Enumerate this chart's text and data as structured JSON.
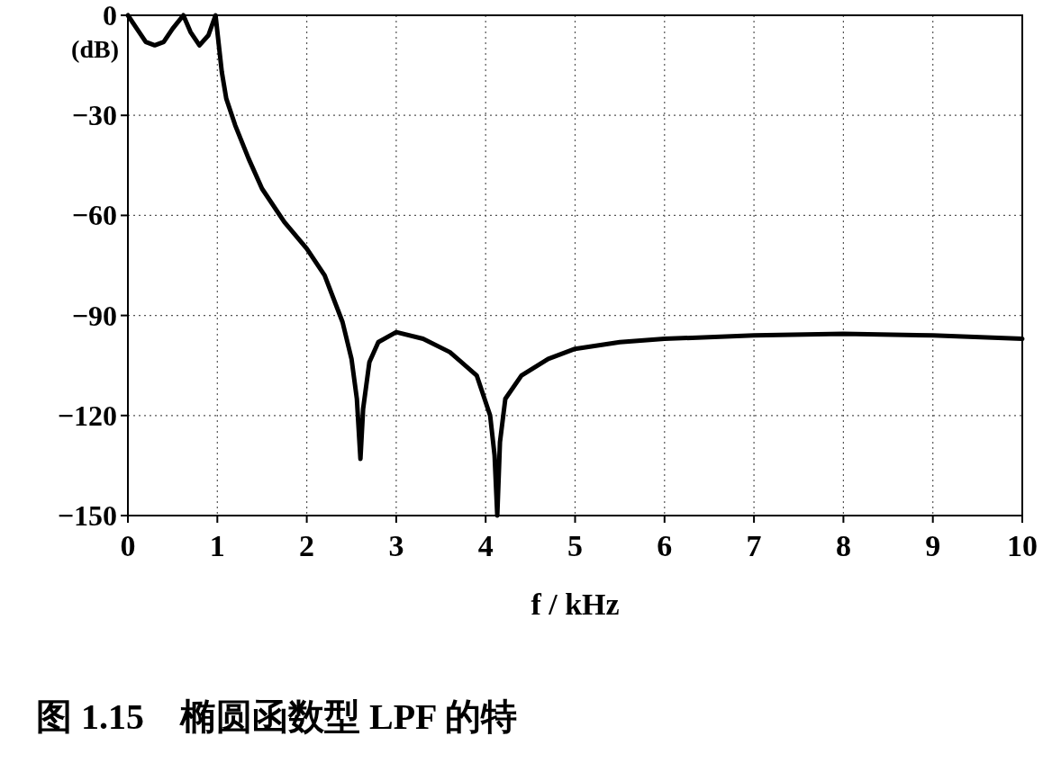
{
  "chart_data": {
    "type": "line",
    "xlabel": "f / kHz",
    "ylabel": "(dB)",
    "annotations": [
      "图 1.15　椭圆函数型 LPF 的特"
    ],
    "x": [
      0,
      0.1,
      0.2,
      0.3,
      0.4,
      0.5,
      0.62,
      0.7,
      0.8,
      0.9,
      0.98,
      1.05,
      1.1,
      1.2,
      1.35,
      1.5,
      1.75,
      2.0,
      2.2,
      2.4,
      2.5,
      2.56,
      2.6,
      2.63,
      2.7,
      2.8,
      3.0,
      3.3,
      3.6,
      3.9,
      4.05,
      4.1,
      4.13,
      4.16,
      4.22,
      4.4,
      4.7,
      5.0,
      5.5,
      6.0,
      7.0,
      8.0,
      9.0,
      10.0
    ],
    "series": [
      {
        "color": "#000000",
        "values": [
          0,
          -4,
          -8,
          -9,
          -8,
          -4,
          0,
          -5,
          -9,
          -6,
          0,
          -17,
          -25,
          -33,
          -43,
          -52,
          -62,
          -70,
          -78,
          -92,
          -103,
          -115,
          -133,
          -118,
          -104,
          -98,
          -95,
          -97,
          -101,
          -108,
          -120,
          -132,
          -150,
          -128,
          -115,
          -108,
          -103,
          -100,
          -98,
          -97,
          -96,
          -95.5,
          -96,
          -97
        ]
      }
    ],
    "xlim": [
      0,
      10
    ],
    "ylim": [
      -150,
      0
    ],
    "xticks": [
      0,
      1,
      2,
      3,
      4,
      5,
      6,
      7,
      8,
      9,
      10
    ],
    "yticks": [
      0,
      -30,
      -60,
      -90,
      -120,
      -150
    ],
    "grid": true
  }
}
